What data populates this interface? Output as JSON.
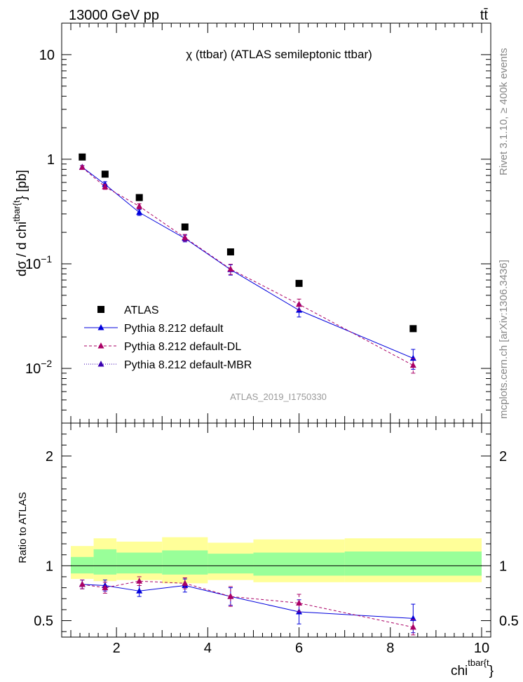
{
  "header": {
    "energy_label": "13000 GeV pp",
    "process_label": "tt̄",
    "side_label_top": "Rivet 3.1.10, ≥ 400k events",
    "side_label_bottom": "mcplots.cern.ch [arXiv:1306.3436]"
  },
  "colors": {
    "data": "#000000",
    "default": "#0000dd",
    "default_dl": "#aa0066",
    "default_mbr": "#3a00b0",
    "band_inner": "#99ff99",
    "band_outer": "#ffff99",
    "watermark": "#999999"
  },
  "chart_data": [
    {
      "panel": "main",
      "type": "scatter",
      "title": "χ (ttbar) (ATLAS semileptonic ttbar)",
      "watermark": "ATLAS_2019_I1750330",
      "ylabel_main": "dσ / d chi",
      "ylabel_sup": "tbar{t",
      "ylabel_tail": "} [pb]",
      "xlabel_main": "chi",
      "xlabel_sup": "tbar{t",
      "xlabel_tail": "}",
      "xlim": [
        0.8,
        10.2
      ],
      "ylim": [
        0.003,
        20
      ],
      "yscale": "log",
      "x_ticks": [
        "2",
        "4",
        "6",
        "8",
        "10"
      ],
      "y_ticks": [
        {
          "mant": "10",
          "exp": "",
          "value": 10
        },
        {
          "mant": "1",
          "exp": "",
          "value": 1
        },
        {
          "mant": "10",
          "exp": "−1",
          "value": 0.1
        },
        {
          "mant": "10",
          "exp": "−2",
          "value": 0.01
        }
      ],
      "legend_position": "bottom-left",
      "x": [
        1.25,
        1.75,
        2.5,
        3.5,
        4.5,
        6.0,
        8.5
      ],
      "bin_edges": [
        1.0,
        1.5,
        2.0,
        3.0,
        4.0,
        5.0,
        7.0,
        10.0
      ],
      "series": [
        {
          "key": "atlas",
          "name": "ATLAS",
          "marker": "square",
          "line": "none",
          "values": [
            1.05,
            0.72,
            0.43,
            0.225,
            0.13,
            0.065,
            0.024
          ]
        },
        {
          "key": "default",
          "name": "Pythia 8.212 default",
          "marker": "triangle",
          "line": "solid",
          "values": [
            0.84,
            0.575,
            0.31,
            0.175,
            0.088,
            0.036,
            0.0125
          ],
          "err_lo": [
            0.03,
            0.035,
            0.02,
            0.013,
            0.01,
            0.005,
            0.0027
          ],
          "err_hi": [
            0.03,
            0.035,
            0.02,
            0.013,
            0.01,
            0.005,
            0.0027
          ]
        },
        {
          "key": "default_dl",
          "name": "Pythia 8.212 default-DL",
          "marker": "triangle",
          "line": "dashed",
          "values": [
            0.835,
            0.545,
            0.355,
            0.178,
            0.089,
            0.041,
            0.0107
          ],
          "err_lo": [
            0.03,
            0.03,
            0.02,
            0.013,
            0.01,
            0.005,
            0.0017
          ],
          "err_hi": [
            0.03,
            0.03,
            0.02,
            0.013,
            0.01,
            0.005,
            0.0017
          ]
        },
        {
          "key": "default_mbr",
          "name": "Pythia 8.212 default-MBR",
          "marker": "triangle",
          "line": "dotted",
          "values": [],
          "err_lo": [],
          "err_hi": []
        }
      ]
    },
    {
      "panel": "ratio",
      "type": "scatter",
      "ylabel": "Ratio to ATLAS",
      "xlim": [
        0.8,
        10.2
      ],
      "ylim": [
        0.35,
        2.3
      ],
      "y_ticks": [
        "0.5",
        "1",
        "2"
      ],
      "reference": 1.0,
      "bin_edges": [
        1.0,
        1.5,
        2.0,
        3.0,
        4.0,
        5.0,
        7.0,
        10.0
      ],
      "band_inner": [
        [
          0.93,
          1.08
        ],
        [
          0.92,
          1.15
        ],
        [
          0.93,
          1.12
        ],
        [
          0.92,
          1.14
        ],
        [
          0.93,
          1.11
        ],
        [
          0.91,
          1.12
        ],
        [
          0.91,
          1.13
        ]
      ],
      "band_outer": [
        [
          0.88,
          1.18
        ],
        [
          0.86,
          1.25
        ],
        [
          0.87,
          1.22
        ],
        [
          0.84,
          1.26
        ],
        [
          0.87,
          1.21
        ],
        [
          0.85,
          1.24
        ],
        [
          0.85,
          1.25
        ]
      ],
      "x": [
        1.25,
        1.75,
        2.5,
        3.5,
        4.5,
        6.0,
        8.5
      ],
      "series": [
        {
          "key": "default",
          "name": "Pythia 8.212 default",
          "values": [
            0.83,
            0.82,
            0.77,
            0.82,
            0.72,
            0.58,
            0.52
          ],
          "err": [
            0.04,
            0.05,
            0.05,
            0.06,
            0.08,
            0.11,
            0.13
          ]
        },
        {
          "key": "default_dl",
          "name": "Pythia 8.212 default-DL",
          "values": [
            0.83,
            0.8,
            0.86,
            0.84,
            0.72,
            0.66,
            0.44
          ],
          "err": [
            0.04,
            0.05,
            0.04,
            0.05,
            0.09,
            0.08,
            0.07
          ]
        }
      ]
    }
  ]
}
